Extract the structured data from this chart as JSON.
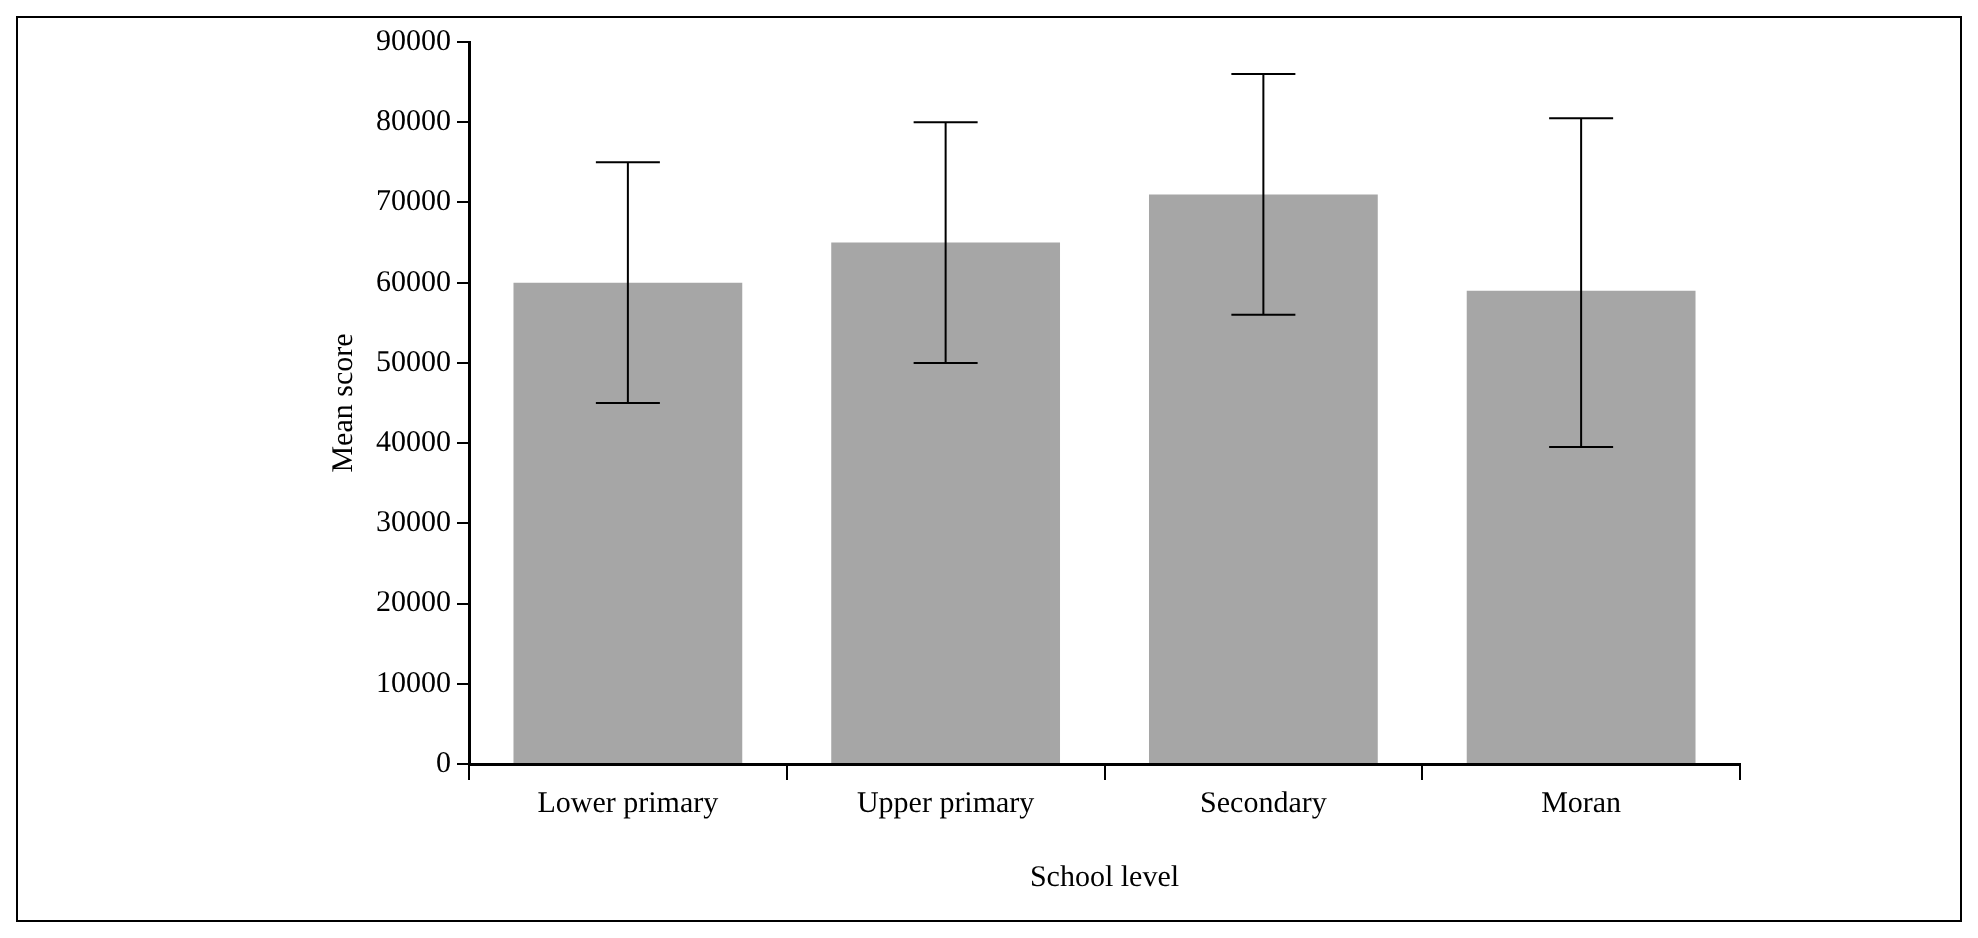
{
  "chart_data": {
    "type": "bar",
    "xlabel": "School level",
    "ylabel": "Mean score",
    "categories": [
      "Lower primary",
      "Upper primary",
      "Secondary",
      "Moran"
    ],
    "values": [
      60000,
      65000,
      71000,
      59000
    ],
    "errors": [
      15000,
      15000,
      15000,
      [
        39500,
        80500
      ]
    ],
    "color": "#a6a6a6",
    "ylim": [
      0,
      90000
    ],
    "yticks": [
      0,
      10000,
      20000,
      30000,
      40000,
      50000,
      60000,
      70000,
      80000,
      90000
    ],
    "grid": false,
    "legend": false
  }
}
